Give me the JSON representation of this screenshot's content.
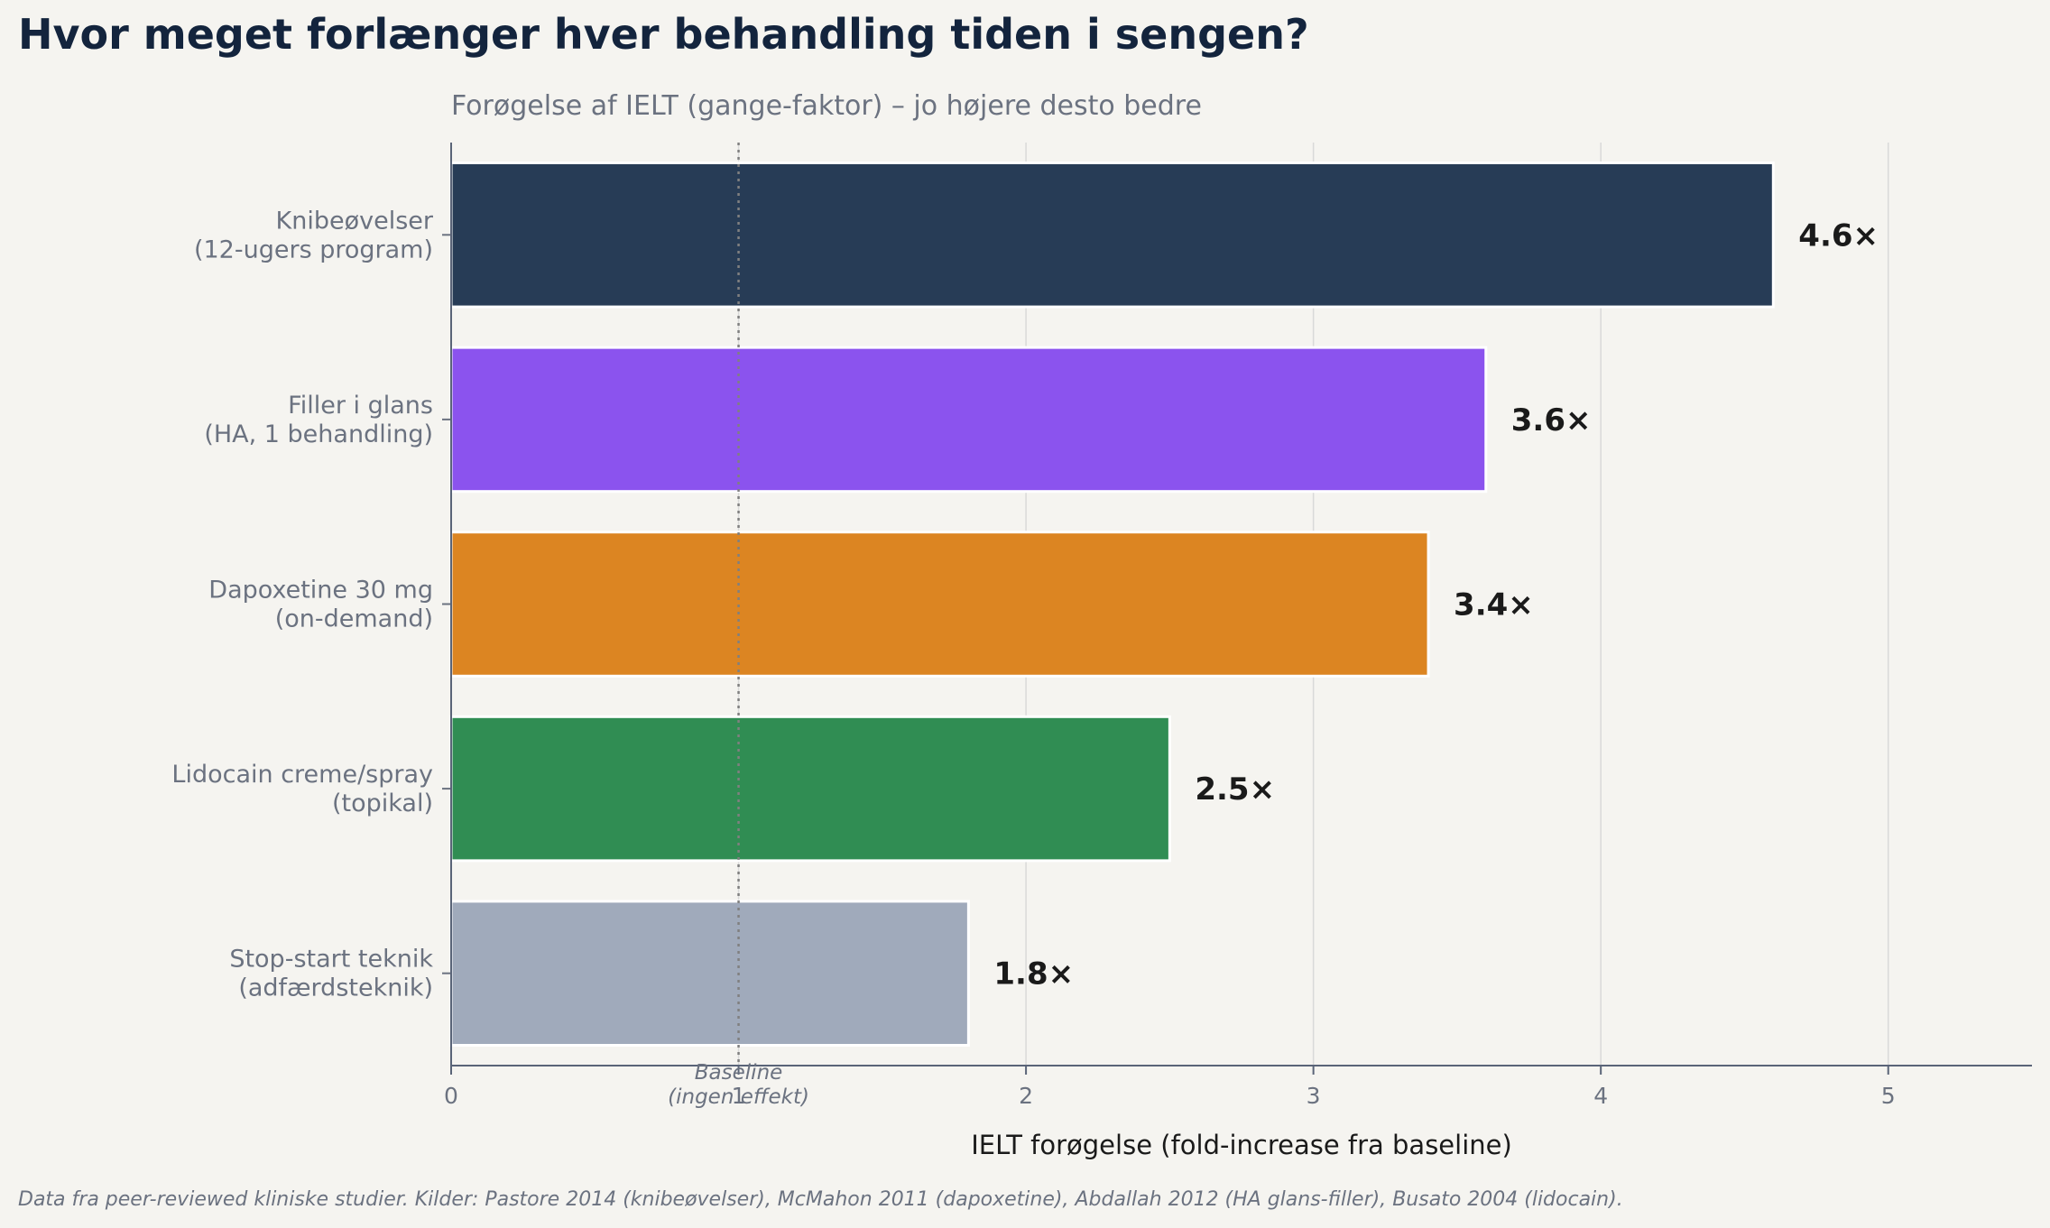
{
  "chart_data": {
    "type": "bar",
    "orientation": "horizontal",
    "title": "Hvor meget forlænger hver behandling tiden i sengen?",
    "subtitle": "Forøgelse af IELT (gange-faktor) – jo højere desto bedre",
    "xlabel": "IELT forøgelse (fold-increase fra baseline)",
    "ylabel": "",
    "xlim": [
      0,
      5.5
    ],
    "xticks": [
      0,
      1,
      2,
      3,
      4,
      5
    ],
    "grid": "vertical",
    "categories": [
      [
        "Knibeøvelser",
        "(12-ugers program)"
      ],
      [
        "Filler i glans",
        "(HA, 1 behandling)"
      ],
      [
        "Dapoxetine 30 mg",
        "(on-demand)"
      ],
      [
        "Lidocain creme/spray",
        "(topikal)"
      ],
      [
        "Stop-start teknik",
        "(adfærdsteknik)"
      ]
    ],
    "values": [
      4.6,
      3.6,
      3.4,
      2.5,
      1.8
    ],
    "value_labels": [
      "4.6×",
      "3.6×",
      "3.4×",
      "2.5×",
      "1.8×"
    ],
    "colors": [
      "#273c56",
      "#8b53ee",
      "#dc8522",
      "#308d53",
      "#a0aabb"
    ],
    "baseline": {
      "value": 1,
      "label": [
        "Baseline",
        "(ingen effekt)"
      ]
    },
    "footnote": "Data fra peer-reviewed kliniske studier. Kilder: Pastore 2014 (knibeøvelser), McMahon 2011 (dapoxetine), Abdallah 2012 (HA glans-filler), Busato 2004 (lidocain)."
  }
}
